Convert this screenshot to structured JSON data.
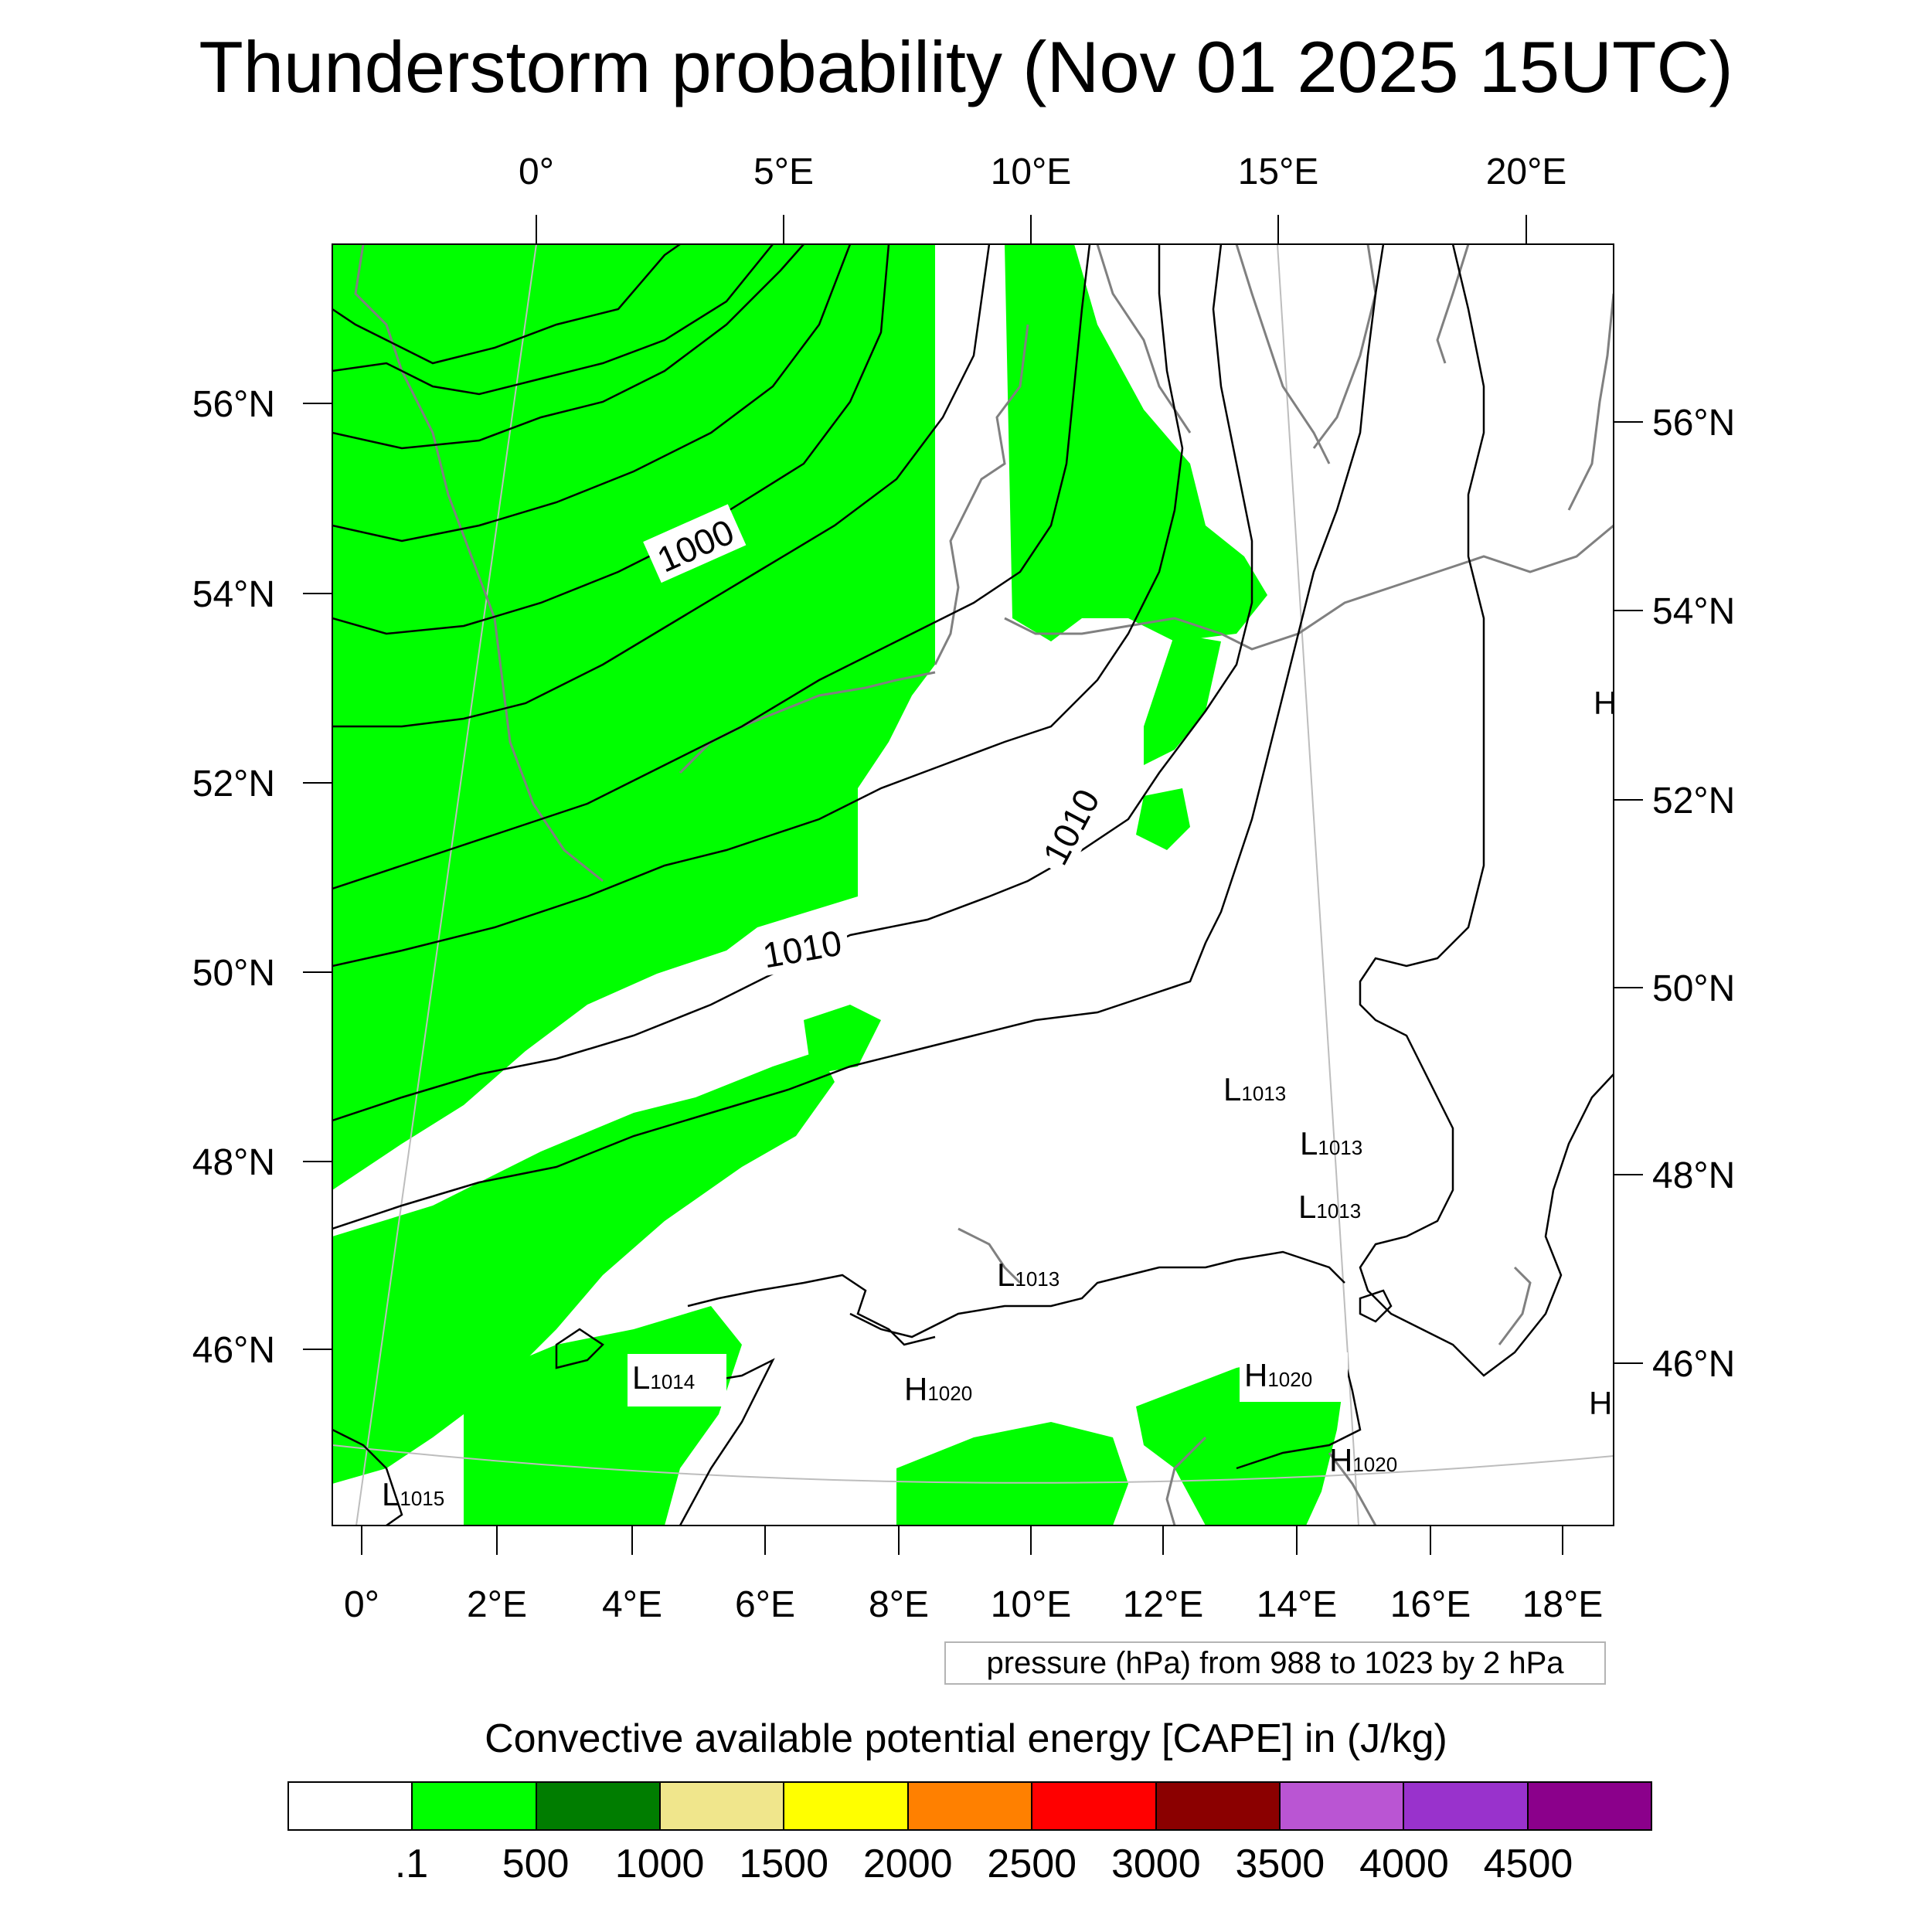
{
  "title": "Thunderstorm probability (Nov 01 2025 15UTC)",
  "map": {
    "top_lon_labels": [
      "0°",
      "5°E",
      "10°E",
      "15°E",
      "20°E"
    ],
    "bottom_lon_labels": [
      "0°",
      "2°E",
      "4°E",
      "6°E",
      "8°E",
      "10°E",
      "12°E",
      "14°E",
      "16°E",
      "18°E"
    ],
    "left_lat_labels": [
      "56°N",
      "54°N",
      "52°N",
      "50°N",
      "48°N",
      "46°N"
    ],
    "right_lat_labels": [
      "56°N",
      "54°N",
      "52°N",
      "50°N",
      "48°N",
      "46°N"
    ],
    "contour_labels": [
      "1000",
      "1010",
      "1010"
    ],
    "pressure_centers": [
      {
        "type": "L",
        "value": "1013"
      },
      {
        "type": "L",
        "value": "1013"
      },
      {
        "type": "L",
        "value": "1013"
      },
      {
        "type": "L",
        "value": "1013"
      },
      {
        "type": "L",
        "value": "1014"
      },
      {
        "type": "L",
        "value": "1015"
      },
      {
        "type": "H",
        "value": "1020"
      },
      {
        "type": "H",
        "value": "1020"
      },
      {
        "type": "H",
        "value": "1020"
      },
      {
        "type": "H",
        "value": ""
      },
      {
        "type": "H",
        "value": ""
      }
    ],
    "colors": {
      "cape_fill": "#00ff00",
      "coastline": "#808080",
      "isobar": "#000000",
      "graticule": "#bdbdbd"
    }
  },
  "contour_info": "pressure (hPa) from 988 to 1023 by 2 hPa",
  "colorbar": {
    "title": "Convective available potential energy [CAPE] in (J/kg)",
    "colors": [
      "#ffffff",
      "#00ff00",
      "#007d00",
      "#f0e68c",
      "#ffff00",
      "#ff8000",
      "#ff0000",
      "#8b0000",
      "#ba55d3",
      "#9932cc",
      "#8b008b"
    ],
    "labels": [
      ".1",
      "500",
      "1000",
      "1500",
      "2000",
      "2500",
      "3000",
      "3500",
      "4000",
      "4500"
    ]
  }
}
